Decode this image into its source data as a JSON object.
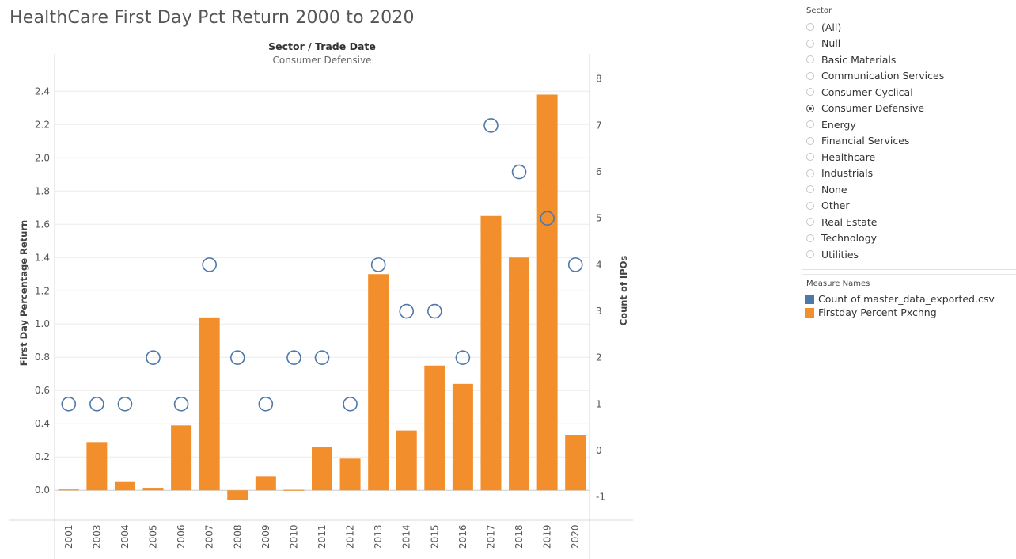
{
  "title": "HealthCare First Day Pct Return 2000 to 2020",
  "sector_filter": {
    "header": "Sector",
    "options": [
      {
        "label": "(All)",
        "selected": false
      },
      {
        "label": "Null",
        "selected": false
      },
      {
        "label": "Basic Materials",
        "selected": false
      },
      {
        "label": "Communication Services",
        "selected": false
      },
      {
        "label": "Consumer Cyclical",
        "selected": false
      },
      {
        "label": "Consumer Defensive",
        "selected": true
      },
      {
        "label": "Energy",
        "selected": false
      },
      {
        "label": "Financial Services",
        "selected": false
      },
      {
        "label": "Healthcare",
        "selected": false
      },
      {
        "label": "Industrials",
        "selected": false
      },
      {
        "label": "None",
        "selected": false
      },
      {
        "label": "Other",
        "selected": false
      },
      {
        "label": "Real Estate",
        "selected": false
      },
      {
        "label": "Technology",
        "selected": false
      },
      {
        "label": "Utilities",
        "selected": false
      }
    ]
  },
  "legend": {
    "header": "Measure Names",
    "items": [
      {
        "label": "Count of master_data_exported.csv",
        "color": "#4e79a7"
      },
      {
        "label": "Firstday Percent Pxchng",
        "color": "#f28e2b"
      }
    ]
  },
  "chart_data": {
    "type": "bar",
    "header_line1": "Sector  /  Trade Date",
    "header_line2": "Consumer Defensive",
    "categories": [
      "2001",
      "2003",
      "2004",
      "2005",
      "2006",
      "2007",
      "2008",
      "2009",
      "2010",
      "2011",
      "2012",
      "2013",
      "2014",
      "2015",
      "2016",
      "2017",
      "2018",
      "2019",
      "2020"
    ],
    "series": [
      {
        "name": "Firstday Percent Pxchng",
        "mark": "bar",
        "axis": "left",
        "color": "#f28e2b",
        "values": [
          0.005,
          0.29,
          0.05,
          0.015,
          0.39,
          1.04,
          -0.06,
          0.085,
          0.003,
          0.26,
          0.19,
          1.3,
          0.36,
          0.75,
          0.64,
          1.65,
          1.4,
          2.38,
          0.33
        ]
      },
      {
        "name": "Count of master_data_exported.csv",
        "mark": "circle",
        "axis": "right",
        "color": "#4e79a7",
        "values": [
          1,
          1,
          1,
          2,
          1,
          4,
          2,
          1,
          2,
          2,
          1,
          4,
          3,
          3,
          2,
          7,
          6,
          5,
          4
        ]
      }
    ],
    "ylabel": "First Day Percentage Return",
    "y2label": "Count of IPOs",
    "ylim": [
      -0.18,
      2.53
    ],
    "yticks": [
      "0.0",
      "0.2",
      "0.4",
      "0.6",
      "0.8",
      "1.0",
      "1.2",
      "1.4",
      "1.6",
      "1.8",
      "2.0",
      "2.2",
      "2.4"
    ],
    "y2lim": [
      -1.5,
      8.2
    ],
    "y2ticks": [
      "-1",
      "0",
      "1",
      "2",
      "3",
      "4",
      "5",
      "6",
      "7",
      "8"
    ],
    "grid": true,
    "legend_position": "right"
  }
}
